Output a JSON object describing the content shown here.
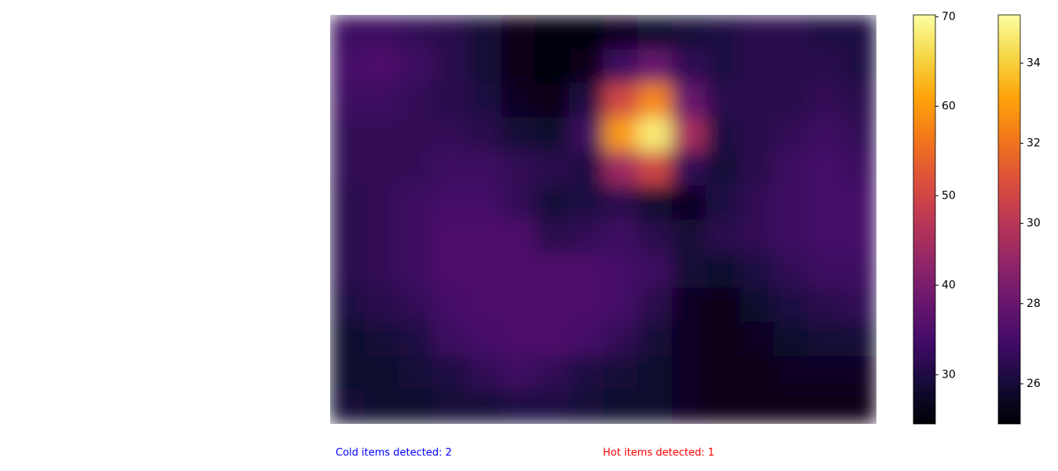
{
  "chart_data": [
    {
      "type": "heatmap",
      "colormap": "inferno",
      "values": [
        [
          33,
          33,
          32,
          31,
          29,
          26,
          25,
          25,
          27,
          28,
          29,
          30,
          31,
          31,
          30,
          30
        ],
        [
          34,
          35,
          33,
          31,
          29,
          26,
          25,
          26,
          33,
          38,
          32,
          30,
          31,
          31,
          31,
          30
        ],
        [
          33,
          33,
          32,
          31,
          30,
          27,
          26,
          30,
          50,
          58,
          38,
          31,
          31,
          31,
          32,
          31
        ],
        [
          32,
          32,
          32,
          32,
          31,
          29,
          28,
          33,
          60,
          68,
          45,
          30,
          31,
          32,
          33,
          32
        ],
        [
          32,
          32,
          32,
          33,
          33,
          32,
          31,
          30,
          44,
          50,
          32,
          29,
          31,
          33,
          34,
          33
        ],
        [
          31,
          32,
          33,
          34,
          34,
          32,
          29,
          30,
          31,
          28,
          27,
          30,
          32,
          33,
          34,
          34
        ],
        [
          31,
          32,
          33,
          35,
          35,
          35,
          31,
          32,
          33,
          31,
          29,
          31,
          32,
          33,
          34,
          34
        ],
        [
          31,
          32,
          33,
          35,
          35,
          35,
          35,
          35,
          34,
          33,
          29,
          28,
          30,
          32,
          33,
          33
        ],
        [
          30,
          31,
          32,
          34,
          35,
          35,
          35,
          35,
          34,
          31,
          27,
          26,
          28,
          30,
          31,
          32
        ],
        [
          28,
          29,
          30,
          33,
          34,
          35,
          35,
          34,
          32,
          29,
          27,
          26,
          27,
          28,
          29,
          29
        ],
        [
          28,
          28,
          29,
          30,
          32,
          33,
          32,
          30,
          29,
          28,
          27,
          26,
          26,
          27,
          27,
          27
        ],
        [
          29,
          28,
          28,
          29,
          29,
          30,
          30,
          29,
          28,
          28,
          27,
          26,
          26,
          26,
          26,
          26
        ]
      ]
    },
    {
      "type": "colorbar",
      "colormap": "inferno",
      "ylim": [
        24.5,
        70.2
      ],
      "yticks": [
        30,
        40,
        50,
        60,
        70
      ]
    },
    {
      "type": "colorbar",
      "colormap": "inferno",
      "ylim": [
        25.0,
        35.2
      ],
      "yticks": [
        26,
        28,
        30,
        32,
        34
      ]
    }
  ],
  "annotations": [
    {
      "text": "Cold items detected: 2",
      "color": "#0000ff"
    },
    {
      "text": "Hot items detected: 1",
      "color": "#ff0000"
    }
  ]
}
